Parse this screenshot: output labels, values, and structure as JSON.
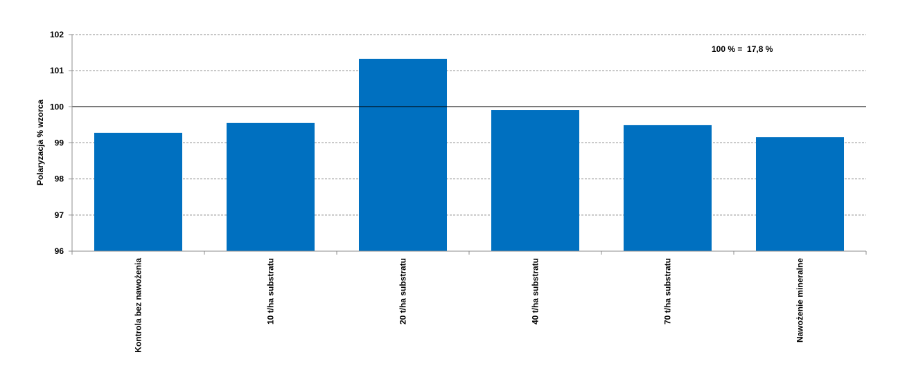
{
  "chart_data": {
    "type": "bar",
    "title": "",
    "xlabel": "",
    "ylabel": "Polaryzacja % wzorca",
    "ylim": [
      96,
      102
    ],
    "yticks": [
      96,
      97,
      98,
      99,
      100,
      101,
      102
    ],
    "reference_line": 100,
    "grid": true,
    "annotation": "100 % =  17,8 %",
    "bar_color": "#0070C0",
    "categories": [
      "Kontrola bez nawożenia",
      "10 t/ha substratu",
      "20 t/ha substratu",
      "40 t/ha substratu",
      "70 t/ha substratu",
      "Nawożenie mineralne"
    ],
    "values": [
      99.28,
      99.55,
      101.33,
      99.91,
      99.49,
      99.16
    ]
  }
}
